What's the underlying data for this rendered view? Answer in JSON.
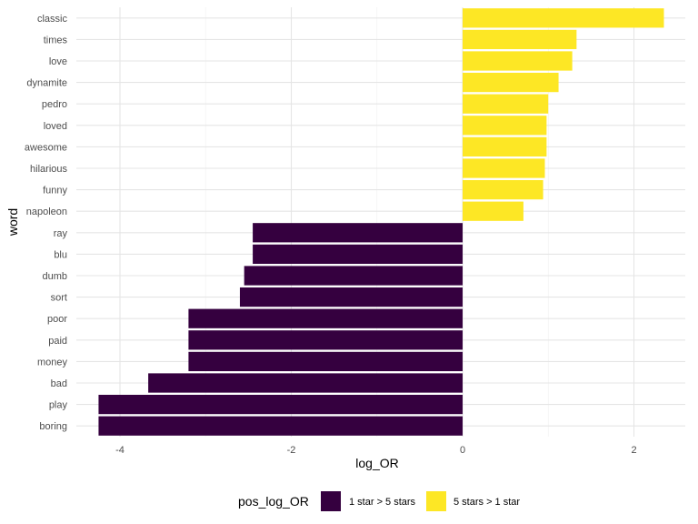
{
  "chart_data": {
    "type": "bar",
    "orientation": "horizontal",
    "xlabel": "log_OR",
    "ylabel": "word",
    "xlim": [
      -4.2,
      2.35
    ],
    "x_ticks": [
      -4,
      -2,
      0,
      2
    ],
    "x_tick_labels": [
      "-4",
      "-2",
      "0",
      "2"
    ],
    "grid": true,
    "legend_position": "bottom",
    "legend": {
      "title": "pos_log_OR",
      "entries": [
        {
          "label": "1 star > 5 stars",
          "color": "#35003f"
        },
        {
          "label": "5 stars > 1 star",
          "color": "#fde725"
        }
      ]
    },
    "categories": [
      "classic",
      "times",
      "love",
      "dynamite",
      "pedro",
      "loved",
      "awesome",
      "hilarious",
      "funny",
      "napoleon",
      "ray",
      "blu",
      "dumb",
      "sort",
      "poor",
      "paid",
      "money",
      "bad",
      "play",
      "boring"
    ],
    "values": [
      2.35,
      1.33,
      1.28,
      1.12,
      1.0,
      0.98,
      0.98,
      0.96,
      0.94,
      0.71,
      -2.45,
      -2.45,
      -2.55,
      -2.6,
      -3.2,
      -3.2,
      -3.2,
      -3.67,
      -4.25,
      -4.25
    ],
    "group": [
      "5 stars > 1 star",
      "5 stars > 1 star",
      "5 stars > 1 star",
      "5 stars > 1 star",
      "5 stars > 1 star",
      "5 stars > 1 star",
      "5 stars > 1 star",
      "5 stars > 1 star",
      "5 stars > 1 star",
      "5 stars > 1 star",
      "1 star > 5 stars",
      "1 star > 5 stars",
      "1 star > 5 stars",
      "1 star > 5 stars",
      "1 star > 5 stars",
      "1 star > 5 stars",
      "1 star > 5 stars",
      "1 star > 5 stars",
      "1 star > 5 stars",
      "1 star > 5 stars"
    ]
  }
}
